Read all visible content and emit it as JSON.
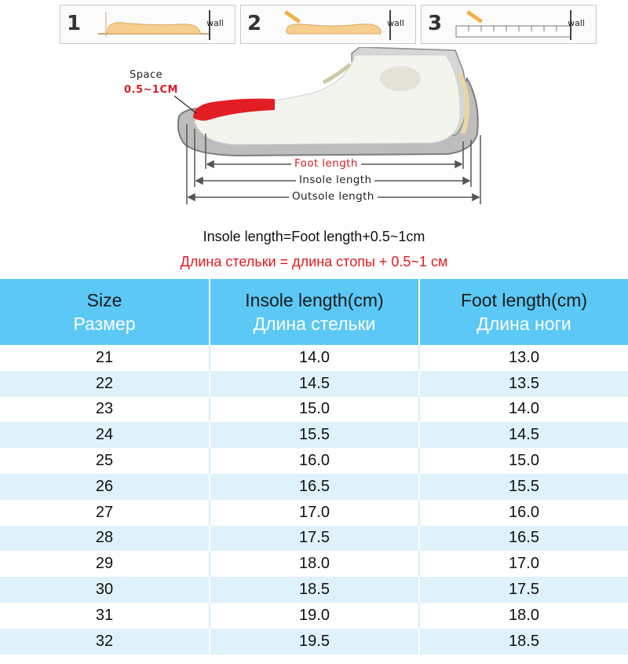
{
  "steps": [
    {
      "number": "1",
      "wall": "wall"
    },
    {
      "number": "2",
      "wall": "wall"
    },
    {
      "number": "3",
      "wall": "wall"
    }
  ],
  "diagram": {
    "space_label": "Space",
    "space_value": "0.5~1CM",
    "foot_length": "Foot length",
    "insole_length": "Insole length",
    "outsole_length": "Outsole length"
  },
  "formula": {
    "en": "Insole length=Foot length+0.5~1cm",
    "ru": "Длина стельки = длина стопы + 0.5~1 см"
  },
  "table": {
    "headers": [
      {
        "en": "Size",
        "ru": "Размер"
      },
      {
        "en": "Insole length(cm)",
        "ru": "Длина стельки"
      },
      {
        "en": "Foot length(cm)",
        "ru": "Длина ноги"
      }
    ],
    "rows": [
      [
        "21",
        "14.0",
        "13.0"
      ],
      [
        "22",
        "14.5",
        "13.5"
      ],
      [
        "23",
        "15.0",
        "14.0"
      ],
      [
        "24",
        "15.5",
        "14.5"
      ],
      [
        "25",
        "16.0",
        "15.0"
      ],
      [
        "26",
        "16.5",
        "15.5"
      ],
      [
        "27",
        "17.0",
        "16.0"
      ],
      [
        "28",
        "17.5",
        "16.5"
      ],
      [
        "29",
        "18.0",
        "17.0"
      ],
      [
        "30",
        "18.5",
        "17.5"
      ],
      [
        "31",
        "19.0",
        "18.0"
      ],
      [
        "32",
        "19.5",
        "18.5"
      ]
    ]
  },
  "colors": {
    "header_bg": "#5cc8f5",
    "stripe": "#dff1fb",
    "accent_red": "#e11b22"
  }
}
